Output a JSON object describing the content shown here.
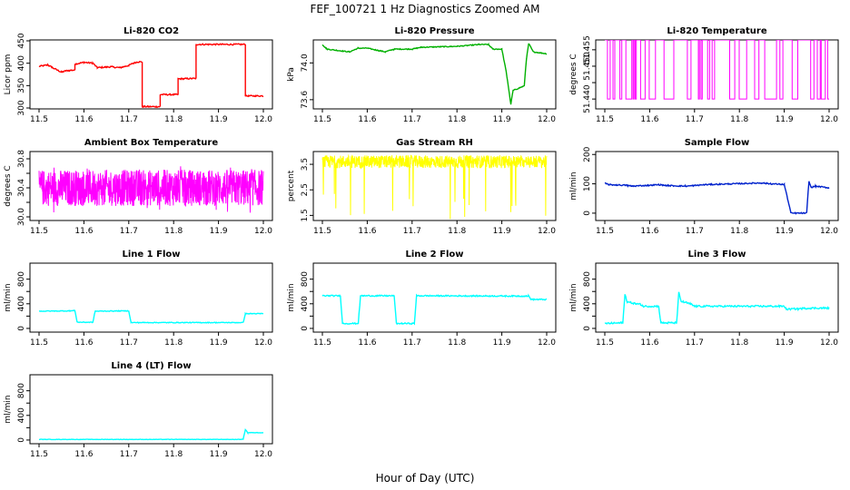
{
  "figure": {
    "title": "FEF_100721  1 Hz Diagnostics Zoomed AM",
    "xlabel": "Hour of Day (UTC)"
  },
  "chart_data": [
    {
      "type": "line",
      "title": "Li-820 CO2",
      "ylabel": "Licor ppm",
      "color": "#ff0000",
      "xlim": [
        11.5,
        12.0
      ],
      "ylim": [
        298,
        452
      ],
      "xticks": [
        "11.5",
        "11.6",
        "11.7",
        "11.8",
        "11.9",
        "12.0"
      ],
      "yticks": [
        300,
        350,
        400,
        450
      ],
      "segments": [
        [
          11.5,
          393
        ],
        [
          11.52,
          396
        ],
        [
          11.53,
          390
        ],
        [
          11.55,
          380
        ],
        [
          11.56,
          383
        ],
        [
          11.58,
          385
        ],
        [
          11.58,
          398
        ],
        [
          11.6,
          402
        ],
        [
          11.62,
          400
        ],
        [
          11.63,
          390
        ],
        [
          11.66,
          392
        ],
        [
          11.68,
          390
        ],
        [
          11.7,
          395
        ],
        [
          11.71,
          400
        ],
        [
          11.72,
          403
        ],
        [
          11.73,
          403
        ],
        [
          11.73,
          303
        ],
        [
          11.77,
          303
        ],
        [
          11.77,
          330
        ],
        [
          11.81,
          330
        ],
        [
          11.81,
          365
        ],
        [
          11.85,
          366
        ],
        [
          11.85,
          442
        ],
        [
          11.96,
          442
        ],
        [
          11.96,
          327
        ],
        [
          12.0,
          327
        ]
      ],
      "noise": 1.5
    },
    {
      "type": "line",
      "title": "Li-820 Pressure",
      "ylabel": "kPa",
      "color": "#00b000",
      "xlim": [
        11.5,
        12.0
      ],
      "ylim": [
        73.5,
        74.25
      ],
      "xticks": [
        "11.5",
        "11.6",
        "11.7",
        "11.8",
        "11.9",
        "12.0"
      ],
      "yticks": [
        73.6,
        74.0
      ],
      "ytick_labels": [
        "73.6",
        "74.0"
      ],
      "segments": [
        [
          11.5,
          74.2
        ],
        [
          11.51,
          74.15
        ],
        [
          11.56,
          74.12
        ],
        [
          11.58,
          74.16
        ],
        [
          11.6,
          74.16
        ],
        [
          11.62,
          74.14
        ],
        [
          11.64,
          74.12
        ],
        [
          11.66,
          74.15
        ],
        [
          11.7,
          74.15
        ],
        [
          11.72,
          74.17
        ],
        [
          11.8,
          74.18
        ],
        [
          11.85,
          74.2
        ],
        [
          11.87,
          74.2
        ],
        [
          11.88,
          74.15
        ],
        [
          11.9,
          74.15
        ],
        [
          11.91,
          73.9
        ],
        [
          11.92,
          73.55
        ],
        [
          11.925,
          73.7
        ],
        [
          11.95,
          73.75
        ],
        [
          11.955,
          74.05
        ],
        [
          11.96,
          74.21
        ],
        [
          11.97,
          74.12
        ],
        [
          12.0,
          74.1
        ]
      ],
      "noise": 0.005
    },
    {
      "type": "step",
      "title": "Li-820 Temperature",
      "ylabel": "degrees C",
      "color": "#ff00ff",
      "xlim": [
        11.5,
        12.0
      ],
      "ylim": [
        51.437,
        51.458
      ],
      "xticks": [
        "11.5",
        "11.6",
        "11.7",
        "11.8",
        "11.9",
        "12.0"
      ],
      "yticks": [
        51.44,
        51.445,
        51.45,
        51.455
      ],
      "ytick_labels": [
        "51.440",
        "",
        "51.450",
        "51.455"
      ],
      "low": 51.44,
      "high": 51.458
    },
    {
      "type": "noise",
      "title": "Ambient Box Temperature",
      "ylabel": "degrees C",
      "color": "#ff00ff",
      "xlim": [
        11.5,
        12.0
      ],
      "ylim": [
        29.95,
        30.9
      ],
      "xticks": [
        "11.5",
        "11.6",
        "11.7",
        "11.8",
        "11.9",
        "12.0"
      ],
      "yticks": [
        30.0,
        30.2,
        30.4,
        30.6,
        30.8
      ],
      "ytick_labels": [
        "30.0",
        "",
        "30.4",
        "",
        "30.8"
      ],
      "center": 30.4,
      "spread": 0.25,
      "spikes_down": 0.35,
      "spikes_up": 0.3
    },
    {
      "type": "noise",
      "title": "Gas Stream RH",
      "ylabel": "percent",
      "color": "#ffff00",
      "xlim": [
        11.5,
        12.0
      ],
      "ylim": [
        1.3,
        4.0
      ],
      "xticks": [
        "11.5",
        "11.6",
        "11.7",
        "11.8",
        "11.9",
        "12.0"
      ],
      "yticks": [
        1.5,
        2.5,
        3.5
      ],
      "ytick_labels": [
        "1.5",
        "2.5",
        "3.5"
      ],
      "center": 3.6,
      "spread": 0.25,
      "spikes_down": 2.3,
      "spikes_up": 0.1
    },
    {
      "type": "line",
      "title": "Sample Flow",
      "ylabel": "ml/min",
      "color": "#0022cc",
      "xlim": [
        11.5,
        12.0
      ],
      "ylim": [
        -25,
        210
      ],
      "xticks": [
        "11.5",
        "11.6",
        "11.7",
        "11.8",
        "11.9",
        "12.0"
      ],
      "yticks": [
        0,
        100,
        200
      ],
      "segments": [
        [
          11.5,
          102
        ],
        [
          11.51,
          97
        ],
        [
          11.55,
          95
        ],
        [
          11.56,
          92
        ],
        [
          11.6,
          95
        ],
        [
          11.62,
          97
        ],
        [
          11.64,
          94
        ],
        [
          11.68,
          92
        ],
        [
          11.7,
          94
        ],
        [
          11.72,
          97
        ],
        [
          11.85,
          103
        ],
        [
          11.87,
          100
        ],
        [
          11.9,
          98
        ],
        [
          11.915,
          0
        ],
        [
          11.95,
          0
        ],
        [
          11.955,
          108
        ],
        [
          11.96,
          88
        ],
        [
          11.97,
          92
        ],
        [
          12.0,
          86
        ]
      ],
      "noise": 2
    },
    {
      "type": "line",
      "title": "Line 1 Flow",
      "ylabel": "ml/min",
      "color": "#00ffff",
      "xlim": [
        11.5,
        12.0
      ],
      "ylim": [
        -60,
        1060
      ],
      "xticks": [
        "11.5",
        "11.6",
        "11.7",
        "11.8",
        "11.9",
        "12.0"
      ],
      "yticks": [
        0,
        200,
        400,
        600,
        800
      ],
      "ytick_labels": [
        "0",
        "",
        "400",
        "",
        "800"
      ],
      "segments": [
        [
          11.5,
          280
        ],
        [
          11.57,
          285
        ],
        [
          11.58,
          290
        ],
        [
          11.585,
          100
        ],
        [
          11.62,
          100
        ],
        [
          11.625,
          280
        ],
        [
          11.7,
          285
        ],
        [
          11.705,
          95
        ],
        [
          11.955,
          95
        ],
        [
          11.96,
          240
        ],
        [
          12.0,
          240
        ]
      ],
      "noise": 6
    },
    {
      "type": "line",
      "title": "Line 2 Flow",
      "ylabel": "ml/min",
      "color": "#00ffff",
      "xlim": [
        11.5,
        12.0
      ],
      "ylim": [
        -60,
        1060
      ],
      "xticks": [
        "11.5",
        "11.6",
        "11.7",
        "11.8",
        "11.9",
        "12.0"
      ],
      "yticks": [
        0,
        200,
        400,
        600,
        800
      ],
      "ytick_labels": [
        "0",
        "",
        "400",
        "",
        "800"
      ],
      "segments": [
        [
          11.5,
          530
        ],
        [
          11.54,
          530
        ],
        [
          11.545,
          80
        ],
        [
          11.58,
          80
        ],
        [
          11.585,
          530
        ],
        [
          11.66,
          530
        ],
        [
          11.665,
          80
        ],
        [
          11.705,
          80
        ],
        [
          11.71,
          530
        ],
        [
          11.96,
          525
        ],
        [
          11.965,
          470
        ],
        [
          12.0,
          470
        ]
      ],
      "noise": 10
    },
    {
      "type": "line",
      "title": "Line 3 Flow",
      "ylabel": "ml/min",
      "color": "#00ffff",
      "xlim": [
        11.5,
        12.0
      ],
      "ylim": [
        -60,
        1060
      ],
      "xticks": [
        "11.5",
        "11.6",
        "11.7",
        "11.8",
        "11.9",
        "12.0"
      ],
      "yticks": [
        0,
        200,
        400,
        600,
        800
      ],
      "ytick_labels": [
        "0",
        "",
        "400",
        "",
        "800"
      ],
      "segments": [
        [
          11.5,
          80
        ],
        [
          11.54,
          90
        ],
        [
          11.545,
          550
        ],
        [
          11.55,
          430
        ],
        [
          11.57,
          400
        ],
        [
          11.58,
          390
        ],
        [
          11.585,
          360
        ],
        [
          11.62,
          360
        ],
        [
          11.625,
          90
        ],
        [
          11.66,
          90
        ],
        [
          11.665,
          580
        ],
        [
          11.67,
          440
        ],
        [
          11.69,
          400
        ],
        [
          11.7,
          360
        ],
        [
          11.9,
          360
        ],
        [
          11.905,
          310
        ],
        [
          11.93,
          320
        ],
        [
          11.96,
          330
        ],
        [
          12.0,
          330
        ]
      ],
      "noise": 14
    },
    {
      "type": "line",
      "title": "Line 4 (LT) Flow",
      "ylabel": "ml/min",
      "color": "#00ffff",
      "xlim": [
        11.5,
        12.0
      ],
      "ylim": [
        -60,
        1060
      ],
      "xticks": [
        "11.5",
        "11.6",
        "11.7",
        "11.8",
        "11.9",
        "12.0"
      ],
      "yticks": [
        0,
        200,
        400,
        600,
        800
      ],
      "ytick_labels": [
        "0",
        "",
        "400",
        "",
        "800"
      ],
      "segments": [
        [
          11.5,
          10
        ],
        [
          11.95,
          10
        ],
        [
          11.955,
          15
        ],
        [
          11.96,
          170
        ],
        [
          11.965,
          120
        ],
        [
          12.0,
          120
        ]
      ],
      "noise": 3
    }
  ]
}
